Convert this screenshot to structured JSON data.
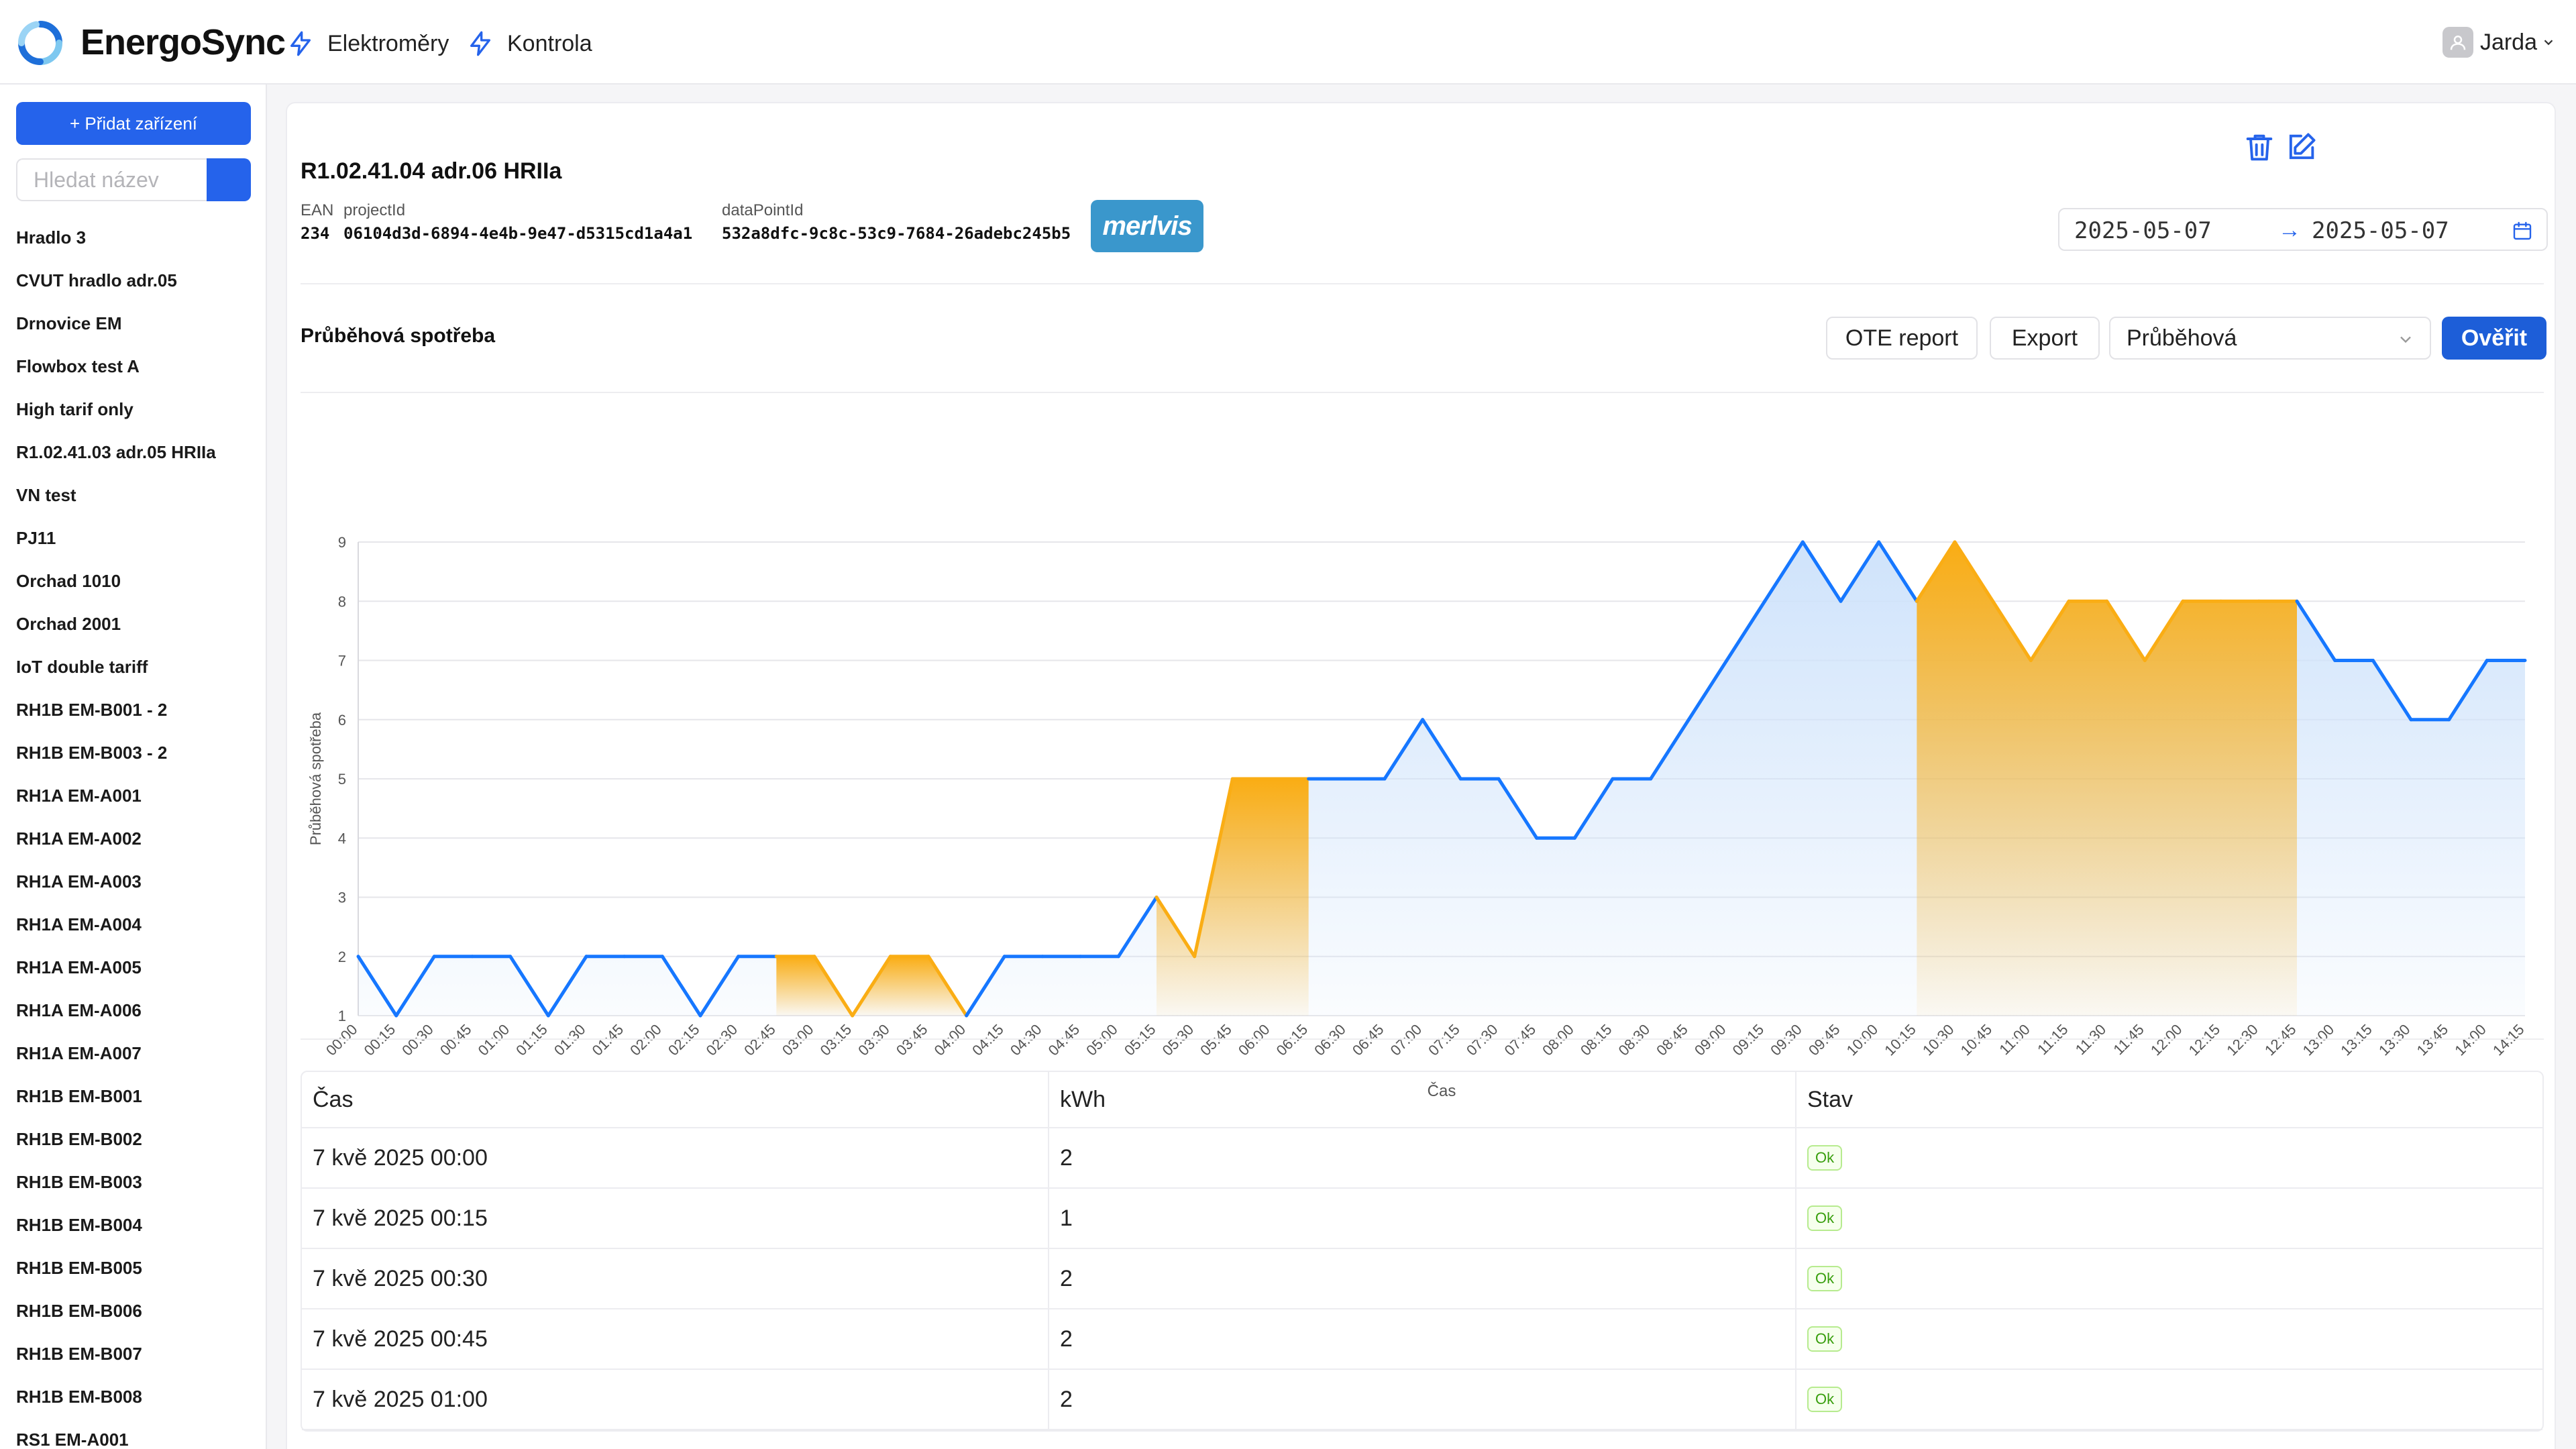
{
  "app": {
    "brand": "EnergoSync"
  },
  "nav": [
    {
      "label": "Elektroměry"
    },
    {
      "label": "Kontrola"
    }
  ],
  "user": {
    "name": "Jarda"
  },
  "sidebar": {
    "add_label": "+ Přidat zařízení",
    "search_placeholder": "Hledat název",
    "items": [
      "Hradlo 3",
      "CVUT hradlo adr.05",
      "Drnovice EM",
      "Flowbox test A",
      "High tarif only",
      "R1.02.41.03 adr.05 HRIIa",
      "VN test",
      "PJ11",
      "Orchad 1010",
      "Orchad 2001",
      "IoT double tariff",
      "RH1B EM-B001 - 2",
      "RH1B EM-B003 - 2",
      "RH1A EM-A001",
      "RH1A EM-A002",
      "RH1A EM-A003",
      "RH1A EM-A004",
      "RH1A EM-A005",
      "RH1A EM-A006",
      "RH1A EM-A007",
      "RH1B EM-B001",
      "RH1B EM-B002",
      "RH1B EM-B003",
      "RH1B EM-B004",
      "RH1B EM-B005",
      "RH1B EM-B006",
      "RH1B EM-B007",
      "RH1B EM-B008",
      "RS1 EM-A001"
    ]
  },
  "device": {
    "title": "R1.02.41.04 adr.06 HRIIa",
    "ean_label": "EAN",
    "ean": "234",
    "project_label": "projectId",
    "project_id": "06104d3d-6894-4e4b-9e47-d5315cd1a4a1",
    "dp_label": "dataPointId",
    "dp_id": "532a8dfc-9c8c-53c9-7684-26adebc245b5",
    "brand_badge": "merlvis"
  },
  "date_range": {
    "from": "2025-05-07",
    "arrow": "→",
    "to": "2025-05-07"
  },
  "section": {
    "title": "Průběhová spotřeba",
    "ote_label": "OTE report",
    "export_label": "Export",
    "select_value": "Průběhová",
    "verify_label": "Ověřit"
  },
  "colors": {
    "primary": "#1d5ed8",
    "line_normal": "#1677ff",
    "line_high": "#faad14"
  },
  "chart_data": {
    "type": "area",
    "xlabel": "Čas",
    "ylabel": "Průběhová spotřeba",
    "ylim": [
      1,
      9
    ],
    "yticks": [
      1,
      2,
      3,
      4,
      5,
      6,
      7,
      8,
      9
    ],
    "grid": true,
    "x": [
      "00:00",
      "00:15",
      "00:30",
      "00:45",
      "01:00",
      "01:15",
      "01:30",
      "01:45",
      "02:00",
      "02:15",
      "02:30",
      "02:45",
      "03:00",
      "03:15",
      "03:30",
      "03:45",
      "04:00",
      "04:15",
      "04:30",
      "04:45",
      "05:00",
      "05:15",
      "05:30",
      "05:45",
      "06:00",
      "06:15",
      "06:30",
      "06:45",
      "07:00",
      "07:15",
      "07:30",
      "07:45",
      "08:00",
      "08:15",
      "08:30",
      "08:45",
      "09:00",
      "09:15",
      "09:30",
      "09:45",
      "10:00",
      "10:15",
      "10:30",
      "10:45",
      "11:00",
      "11:15",
      "11:30",
      "11:45",
      "12:00",
      "12:15",
      "12:30",
      "12:45",
      "13:00",
      "13:15",
      "13:30",
      "13:45",
      "14:00",
      "14:15"
    ],
    "values": [
      2,
      1,
      2,
      2,
      2,
      1,
      2,
      2,
      2,
      1,
      2,
      2,
      2,
      1,
      2,
      2,
      1,
      2,
      2,
      2,
      2,
      3,
      2,
      5,
      5,
      5,
      5,
      5,
      6,
      5,
      5,
      4,
      4,
      5,
      5,
      6,
      7,
      8,
      9,
      8,
      9,
      8,
      9,
      8,
      7,
      8,
      8,
      7,
      8,
      8,
      8,
      8,
      7,
      7,
      6,
      6,
      7,
      7
    ],
    "highlight_segments": [
      [
        11,
        16
      ],
      [
        21,
        25
      ],
      [
        41,
        51
      ]
    ]
  },
  "table": {
    "headers": {
      "time": "Čas",
      "kwh": "kWh",
      "status": "Stav"
    },
    "rows": [
      {
        "time": "7 kvě 2025 00:00",
        "kwh": "2",
        "status": "Ok"
      },
      {
        "time": "7 kvě 2025 00:15",
        "kwh": "1",
        "status": "Ok"
      },
      {
        "time": "7 kvě 2025 00:30",
        "kwh": "2",
        "status": "Ok"
      },
      {
        "time": "7 kvě 2025 00:45",
        "kwh": "2",
        "status": "Ok"
      },
      {
        "time": "7 kvě 2025 01:00",
        "kwh": "2",
        "status": "Ok"
      }
    ]
  }
}
